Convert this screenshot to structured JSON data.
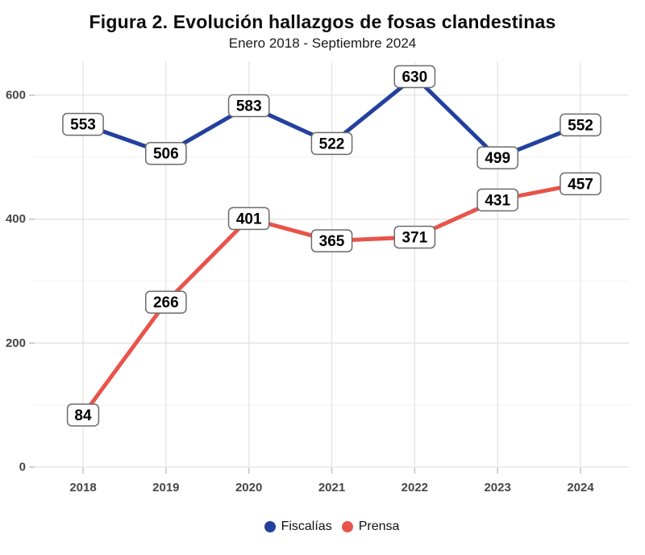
{
  "title": "Figura 2. Evolución hallazgos de fosas clandestinas",
  "subtitle": "Enero 2018 - Septiembre 2024",
  "legend": {
    "items": [
      {
        "label": "Fiscalías",
        "color": "#23409e"
      },
      {
        "label": "Prensa",
        "color": "#e8544a"
      }
    ]
  },
  "chart_data": {
    "type": "line",
    "title": "Figura 2. Evolución hallazgos de fosas clandestinas",
    "subtitle": "Enero 2018 - Septiembre 2024",
    "categories": [
      "2018",
      "2019",
      "2020",
      "2021",
      "2022",
      "2023",
      "2024"
    ],
    "series": [
      {
        "name": "Fiscalías",
        "color": "#23409e",
        "values": [
          553,
          506,
          583,
          522,
          630,
          499,
          552
        ]
      },
      {
        "name": "Prensa",
        "color": "#e8544a",
        "values": [
          84,
          266,
          401,
          365,
          371,
          431,
          457
        ]
      }
    ],
    "xlabel": "",
    "ylabel": "",
    "ylim": [
      0,
      640
    ],
    "yticks": [
      0,
      200,
      400,
      600
    ],
    "yminor": [
      100,
      300,
      500
    ],
    "grid": true,
    "data_labels": true,
    "legend_position": "bottom"
  },
  "style": {
    "background": "#ffffff",
    "grid_major": "#e3e3e3",
    "grid_minor": "#f2f2f2",
    "tick_color": "#bdbdbd",
    "axis_text_color": "#474747",
    "label_box_fill": "#ffffff",
    "label_box_border": "#6b6b6b",
    "label_text_color": "#000000"
  }
}
